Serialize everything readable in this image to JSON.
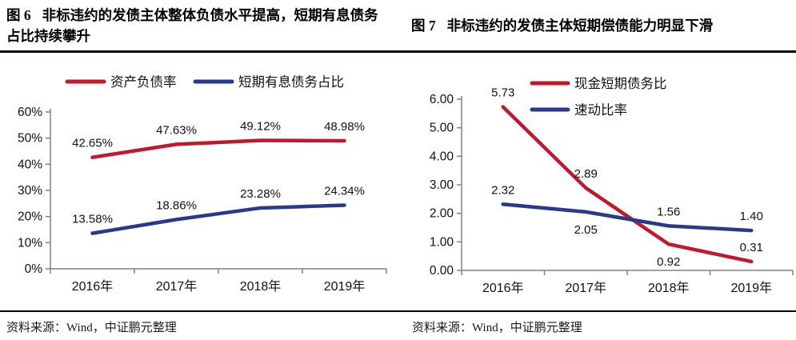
{
  "panels": [
    {
      "figure_label": "图 6",
      "title": "非标违约的发债主体整体负债水平提高，短期有息债务占比持续攀升",
      "source": "资料来源：Wind，中证鹏元整理"
    },
    {
      "figure_label": "图 7",
      "title": "非标违约的发债主体短期偿债能力明显下滑",
      "source": "资料来源：Wind，中证鹏元整理"
    }
  ],
  "colors": {
    "series_red": "#c2182b",
    "series_blue": "#29398d",
    "axis": "#808080",
    "label_text": "#111111"
  },
  "chart_data": [
    {
      "type": "line",
      "title": "",
      "categories": [
        "2016年",
        "2017年",
        "2018年",
        "2019年"
      ],
      "ylim": [
        0,
        60
      ],
      "yticks": {
        "values": [
          0,
          10,
          20,
          30,
          40,
          50,
          60
        ],
        "labels": [
          "0%",
          "10%",
          "20%",
          "30%",
          "40%",
          "50%",
          "60%"
        ]
      },
      "grid": false,
      "legend_position": "top-horizontal",
      "series": [
        {
          "name": "资产负债率",
          "color": "#c2182b",
          "values": [
            42.65,
            47.63,
            49.12,
            48.98
          ],
          "labels": [
            "42.65%",
            "47.63%",
            "49.12%",
            "48.98%"
          ],
          "label_pos": [
            "above",
            "above",
            "above",
            "above"
          ]
        },
        {
          "name": "短期有息债务占比",
          "color": "#29398d",
          "values": [
            13.58,
            18.86,
            23.28,
            24.34
          ],
          "labels": [
            "13.58%",
            "18.86%",
            "23.28%",
            "24.34%"
          ],
          "label_pos": [
            "above",
            "above",
            "above",
            "above"
          ]
        }
      ]
    },
    {
      "type": "line",
      "title": "",
      "categories": [
        "2016年",
        "2017年",
        "2018年",
        "2019年"
      ],
      "ylim": [
        0,
        6
      ],
      "yticks": {
        "values": [
          0,
          1,
          2,
          3,
          4,
          5,
          6
        ],
        "labels": [
          "0.00",
          "1.00",
          "2.00",
          "3.00",
          "4.00",
          "5.00",
          "6.00"
        ]
      },
      "grid": false,
      "legend_position": "inset-vertical",
      "series": [
        {
          "name": "现金短期债务比",
          "color": "#c2182b",
          "values": [
            5.73,
            2.89,
            0.92,
            0.31
          ],
          "labels": [
            "5.73",
            "2.89",
            "0.92",
            "0.31"
          ],
          "label_pos": [
            "above",
            "above",
            "below",
            "above"
          ]
        },
        {
          "name": "速动比率",
          "color": "#29398d",
          "values": [
            2.32,
            2.05,
            1.56,
            1.4
          ],
          "labels": [
            "2.32",
            "2.05",
            "1.56",
            "1.40"
          ],
          "label_pos": [
            "above",
            "below",
            "above",
            "above"
          ]
        }
      ]
    }
  ]
}
